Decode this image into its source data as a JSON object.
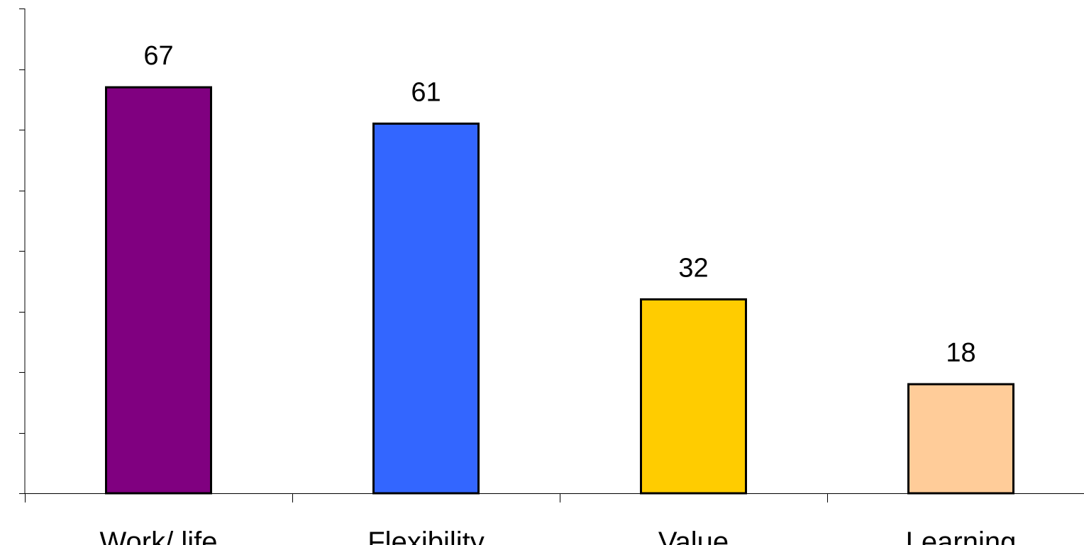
{
  "chart_data": {
    "type": "bar",
    "categories": [
      "Work/ life",
      "Flexibility",
      "Value",
      "Learning"
    ],
    "values": [
      67,
      61,
      32,
      18
    ],
    "data_labels": [
      "67",
      "61",
      "32",
      "18"
    ],
    "colors": [
      "#800080",
      "#3366FF",
      "#FFCC00",
      "#FFCC99"
    ],
    "bar_outline": "#000000",
    "ylim": [
      0,
      80
    ],
    "grid": false,
    "legend": "none",
    "title": "",
    "xlabel": "",
    "ylabel": ""
  }
}
